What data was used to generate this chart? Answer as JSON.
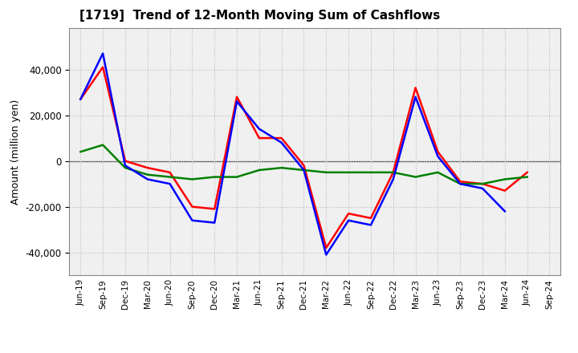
{
  "title": "[1719]  Trend of 12-Month Moving Sum of Cashflows",
  "ylabel": "Amount (million yen)",
  "background_color": "#ffffff",
  "plot_bg_color": "#f0f0f0",
  "grid_color": "#bbbbbb",
  "ylim": [
    -50000,
    58000
  ],
  "yticks": [
    -40000,
    -20000,
    0,
    20000,
    40000
  ],
  "x_labels": [
    "Jun-19",
    "Sep-19",
    "Dec-19",
    "Mar-20",
    "Jun-20",
    "Sep-20",
    "Dec-20",
    "Mar-21",
    "Jun-21",
    "Sep-21",
    "Dec-21",
    "Mar-22",
    "Jun-22",
    "Sep-22",
    "Dec-22",
    "Mar-23",
    "Jun-23",
    "Sep-23",
    "Dec-23",
    "Mar-24",
    "Jun-24",
    "Sep-24"
  ],
  "operating": [
    27000,
    41000,
    0,
    -3000,
    -5000,
    -20000,
    -21000,
    28000,
    10000,
    10000,
    -2000,
    -38000,
    -23000,
    -25000,
    -5000,
    32000,
    4000,
    -9000,
    -10000,
    -13000,
    -5000,
    null
  ],
  "investing": [
    4000,
    7000,
    -3000,
    -6000,
    -7000,
    -8000,
    -7000,
    -7000,
    -4000,
    -3000,
    -4000,
    -5000,
    -5000,
    -5000,
    -5000,
    -7000,
    -5000,
    -10000,
    -10000,
    -8000,
    -7000,
    null
  ],
  "free": [
    27000,
    47000,
    -2000,
    -8000,
    -10000,
    -26000,
    -27000,
    26000,
    14000,
    8000,
    -4000,
    -41000,
    -26000,
    -28000,
    -8000,
    28000,
    2000,
    -10000,
    -12000,
    -22000,
    null,
    null
  ],
  "operating_color": "#ff0000",
  "investing_color": "#008000",
  "free_color": "#0000ff",
  "line_width": 1.8
}
